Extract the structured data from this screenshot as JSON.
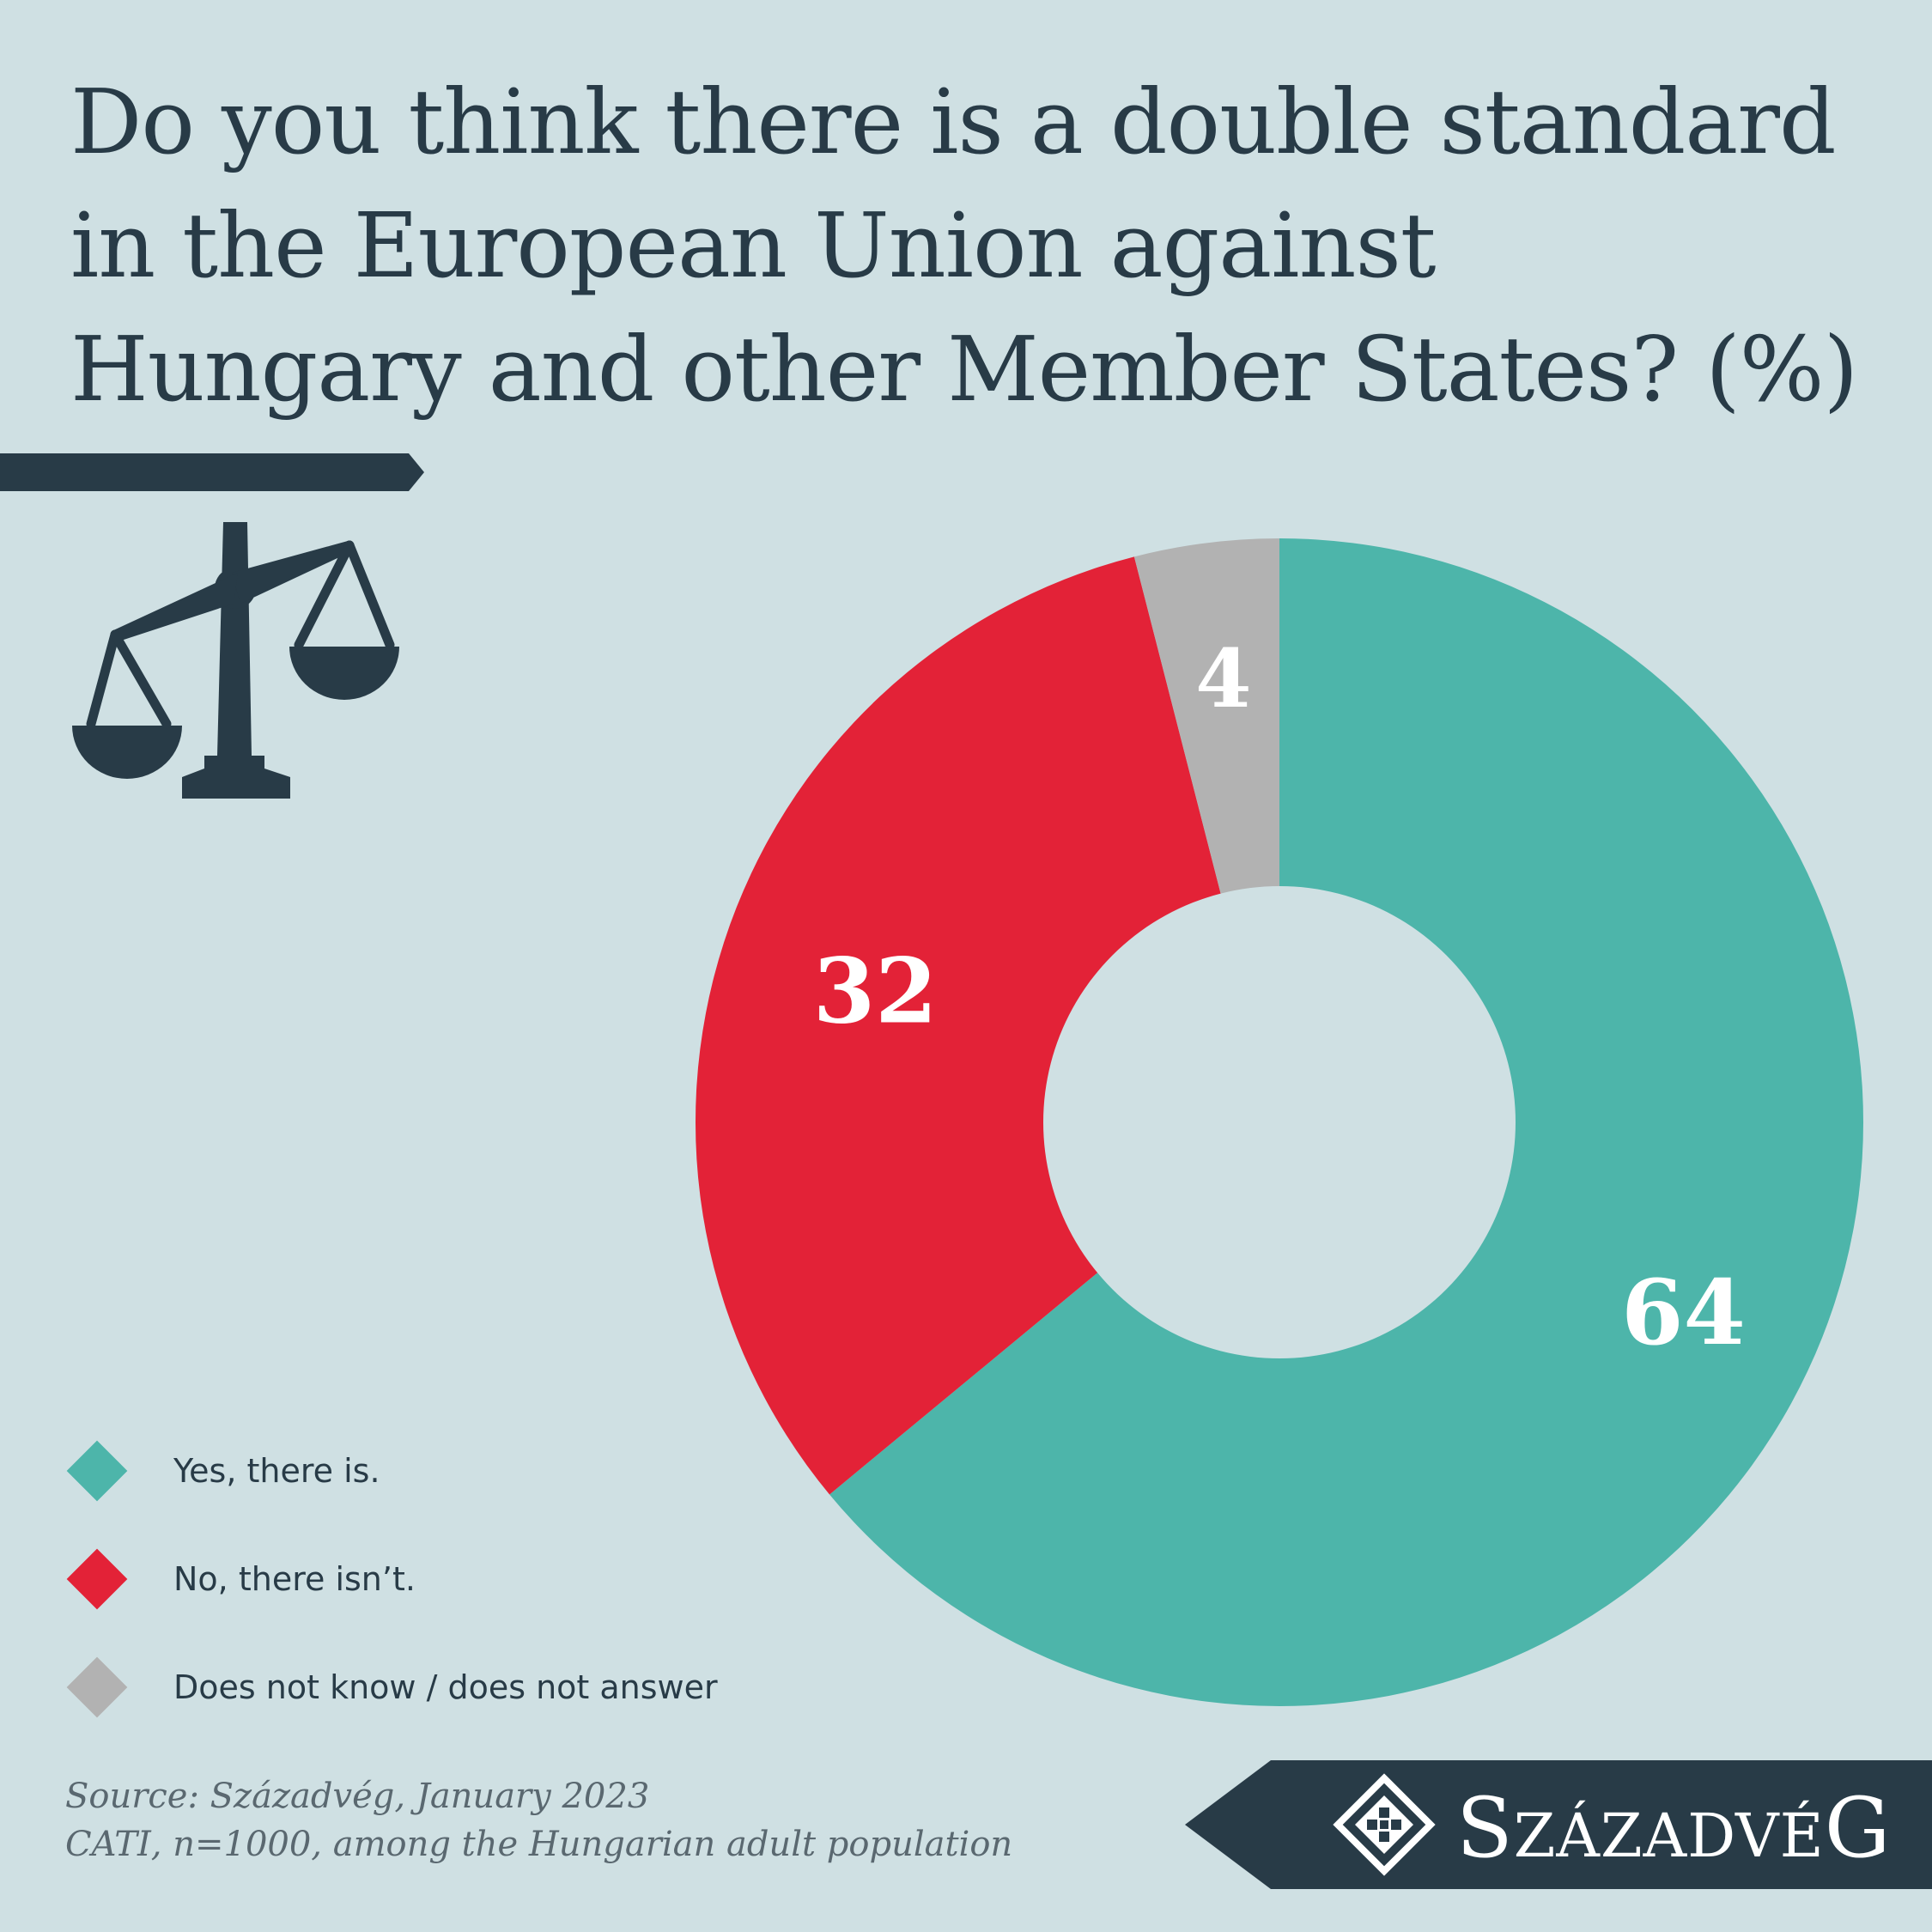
{
  "title_lines": [
    "Do you think there is a double standard",
    "in the European Union against",
    "Hungary and other Member States? (%)"
  ],
  "chart_data": {
    "type": "pie",
    "donut": true,
    "title": "Do you think there is a double standard in the European Union against Hungary and other Member States? (%)",
    "categories": [
      "Yes, there is.",
      "No, there isn’t.",
      "Does not know / does not answer"
    ],
    "values": [
      64,
      32,
      4
    ],
    "labels": [
      "64",
      "32",
      "4"
    ],
    "colors": [
      "#4db5aa",
      "#e32237",
      "#b2b2b2"
    ],
    "legend_position": "bottom-left",
    "start_angle": "12 o'clock, clockwise"
  },
  "legend": [
    {
      "label": "Yes, there is.",
      "color": "#4db5aa"
    },
    {
      "label": "No, there isn’t.",
      "color": "#e32237"
    },
    {
      "label": "Does not know / does not answer",
      "color": "#b2b2b2"
    }
  ],
  "source": {
    "line1": "Source: Századvég, January 2023",
    "line2": "CATI, n=1000, among the Hungarian adult population"
  },
  "brand": {
    "initial": "S",
    "middle": "ZÁZADVÉ",
    "final": "G",
    "full": "Századvég"
  },
  "icons": {
    "scales": "scales-of-justice-icon",
    "logo": "szazadveg-logo-icon"
  },
  "colors": {
    "background": "#cfe0e3",
    "dark": "#283b47"
  }
}
